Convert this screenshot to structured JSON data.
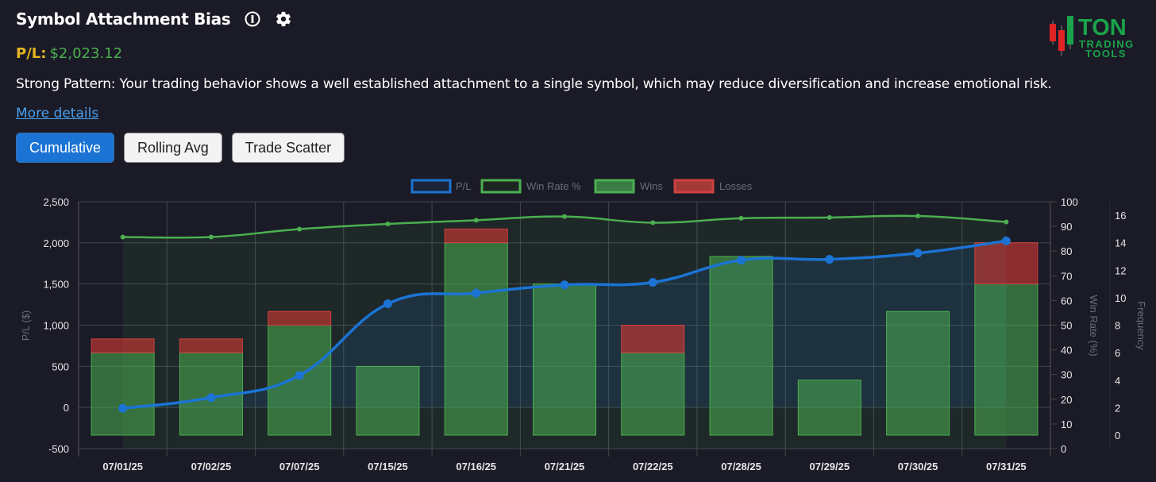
{
  "header": {
    "title": "Symbol Attachment Bias",
    "info_icon": "info-circle-icon",
    "settings_icon": "gear-icon",
    "pl_label": "P/L:",
    "pl_value": "$2,023.12",
    "description": "Strong Pattern: Your trading behavior shows a well established attachment to a single symbol, which may reduce diversification and increase emotional risk.",
    "more_details": "More details"
  },
  "logo": {
    "line1": "TON",
    "line2": "TRADING",
    "line3": "TOOLS"
  },
  "tabs": [
    {
      "label": "Cumulative",
      "active": true
    },
    {
      "label": "Rolling Avg",
      "active": false
    },
    {
      "label": "Trade Scatter",
      "active": false
    }
  ],
  "colors": {
    "pl_line": "#1b74d4",
    "win_rate_line": "#4caf50",
    "wins_bar": "#3a7d44",
    "losses_bar": "#a33a35",
    "pl_label": "#e6b422",
    "pl_value": "#4caf50",
    "link": "#4a9fef"
  },
  "chart_data": {
    "type": "bar",
    "title": "",
    "categories": [
      "07/01/25",
      "07/02/25",
      "07/07/25",
      "07/15/25",
      "07/16/25",
      "07/21/25",
      "07/22/25",
      "07/28/25",
      "07/29/25",
      "07/30/25",
      "07/31/25"
    ],
    "series": [
      {
        "name": "P/L",
        "type": "line",
        "axis": "P/L ($)",
        "values": [
          -10,
          120,
          390,
          1260,
          1390,
          1490,
          1520,
          1790,
          1800,
          1875,
          2023.12
        ]
      },
      {
        "name": "Win Rate %",
        "type": "line",
        "axis": "Win Rate (%)",
        "values": [
          85.7,
          85.7,
          88.9,
          91.0,
          92.5,
          94.0,
          91.5,
          93.3,
          93.6,
          94.2,
          91.8
        ]
      },
      {
        "name": "Wins",
        "type": "bar",
        "stacked": true,
        "axis": "Frequency",
        "values": [
          6,
          6,
          8,
          5,
          14,
          11,
          6,
          13,
          4,
          9,
          11
        ]
      },
      {
        "name": "Losses",
        "type": "bar",
        "stacked": true,
        "axis": "Frequency",
        "values": [
          1,
          1,
          1,
          0,
          1,
          0,
          2,
          0,
          0,
          0,
          3
        ]
      }
    ],
    "legend": [
      "P/L",
      "Win Rate %",
      "Wins",
      "Losses"
    ],
    "legend_position": "top",
    "ylabel": "P/L ($)",
    "ylim": [
      -500,
      2500
    ],
    "yticks": [
      "2,500",
      "2,000",
      "1,500",
      "1,000",
      "500",
      "0",
      "-500"
    ],
    "y2label": "Win Rate (%)",
    "y2lim": [
      0,
      100
    ],
    "y2ticks": [
      "100",
      "90",
      "80",
      "70",
      "60",
      "50",
      "40",
      "30",
      "20",
      "10",
      "0"
    ],
    "y3label": "Frequency",
    "y3lim": [
      0,
      16
    ],
    "y3ticks": [
      "16",
      "14",
      "12",
      "10",
      "8",
      "6",
      "4",
      "2",
      "0"
    ],
    "grid": true
  }
}
